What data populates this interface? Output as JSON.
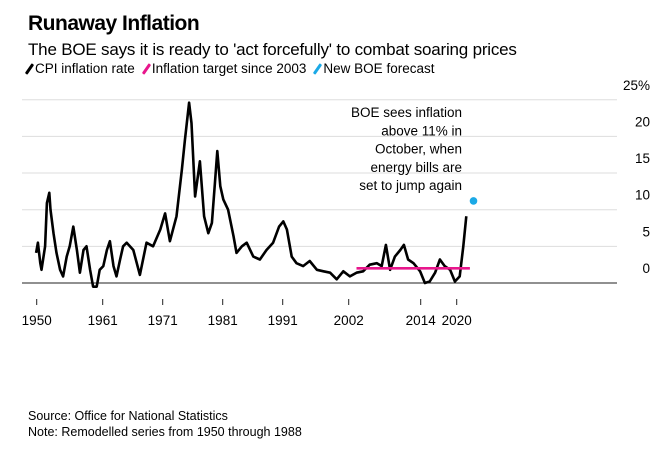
{
  "chart_data": {
    "type": "line",
    "title": "Runaway Inflation",
    "subtitle": "The BOE says it is ready to 'act forcefully' to combat soaring prices",
    "legend": [
      {
        "label": "CPI inflation rate",
        "color": "#000000"
      },
      {
        "label": "Inflation target since 2003",
        "color": "#e8168c"
      },
      {
        "label": "New BOE forecast",
        "color": "#1ba9e6"
      }
    ],
    "y_unit_label": "25%",
    "ylim": [
      0,
      25
    ],
    "y_ticks": [
      0,
      5,
      10,
      15,
      20,
      25
    ],
    "y_tick_labels": [
      "0",
      "5",
      "10",
      "15",
      "20",
      "25%"
    ],
    "xlim": [
      1945,
      2023
    ],
    "x_ticks": [
      1950,
      1961,
      1971,
      1981,
      1991,
      2002,
      2014,
      2020
    ],
    "x_tick_labels": [
      "1950",
      "1961",
      "1971",
      "1981",
      "1991",
      "2002",
      "2014",
      "2020"
    ],
    "grid": true,
    "series": [
      {
        "name": "CPI inflation rate",
        "color": "#000000",
        "x": [
          1949.9,
          1950.2,
          1950.6,
          1950.8,
          1951.4,
          1951.7,
          1952.1,
          1952.3,
          1952.8,
          1953.3,
          1953.9,
          1954.4,
          1955.0,
          1955.5,
          1956.1,
          1956.7,
          1957.2,
          1957.8,
          1958.3,
          1958.9,
          1959.4,
          1960.0,
          1960.5,
          1961.1,
          1961.7,
          1962.2,
          1962.8,
          1963.3,
          1963.9,
          1964.4,
          1965.0,
          1966.1,
          1967.2,
          1968.3,
          1969.4,
          1970.6,
          1971.4,
          1972.2,
          1973.3,
          1974.2,
          1974.7,
          1975.4,
          1975.8,
          1976.4,
          1977.2,
          1977.9,
          1978.6,
          1979.2,
          1979.7,
          1980.1,
          1980.6,
          1981.1,
          1981.9,
          1982.8,
          1983.3,
          1984.2,
          1985.0,
          1986.1,
          1987.2,
          1988.3,
          1989.4,
          1990.4,
          1991.1,
          1991.7,
          1992.5,
          1993.3,
          1994.4,
          1995.5,
          1996.7,
          1997.8,
          1998.9,
          2000.0,
          2001.1,
          2002.2,
          2003.3,
          2004.4,
          2005.5,
          2006.7,
          2007.5,
          2008.2,
          2008.9,
          2009.7,
          2010.6,
          2011.2,
          2011.9,
          2012.8,
          2013.9,
          2014.7,
          2015.5,
          2016.4,
          2017.2,
          2018.0,
          2018.9,
          2019.7,
          2020.5,
          2021.1,
          2021.6
        ],
        "y": [
          4.1,
          5.5,
          2.7,
          1.8,
          5.0,
          10.9,
          12.3,
          10.0,
          6.8,
          4.1,
          1.8,
          0.9,
          3.6,
          5.0,
          7.7,
          4.5,
          1.4,
          4.5,
          5.0,
          1.8,
          -0.5,
          -0.5,
          1.8,
          2.3,
          4.5,
          5.7,
          2.3,
          0.9,
          3.2,
          5.0,
          5.5,
          4.5,
          1.1,
          5.5,
          5.0,
          7.3,
          9.5,
          5.7,
          9.1,
          15.5,
          19.5,
          24.6,
          21.8,
          11.8,
          16.6,
          9.1,
          6.8,
          8.2,
          13.6,
          18.0,
          13.2,
          11.4,
          10.0,
          6.4,
          4.1,
          5.0,
          5.5,
          3.6,
          3.2,
          4.5,
          5.5,
          7.7,
          8.4,
          7.3,
          3.6,
          2.7,
          2.3,
          3.0,
          1.8,
          1.6,
          1.4,
          0.5,
          1.6,
          0.9,
          1.4,
          1.6,
          2.5,
          2.7,
          2.3,
          5.2,
          1.8,
          3.6,
          4.5,
          5.2,
          3.2,
          2.7,
          1.6,
          0.0,
          0.2,
          1.4,
          3.2,
          2.3,
          1.8,
          0.2,
          0.9,
          5.0,
          9.1
        ]
      },
      {
        "name": "Inflation target since 2003",
        "color": "#e8168c",
        "x": [
          2003.3,
          2022.2
        ],
        "y": [
          2.0,
          2.0
        ]
      },
      {
        "name": "New BOE forecast",
        "color": "#1ba9e6",
        "x": [
          2022.8
        ],
        "y": [
          11.2
        ]
      }
    ],
    "annotation": [
      "BOE sees inflation",
      "above 11% in",
      "October, when",
      "energy bills are",
      "set to jump again"
    ]
  },
  "footer": {
    "source": "Source: Office for National Statistics",
    "note": "Note: Remodelled series from 1950 through 1988"
  }
}
